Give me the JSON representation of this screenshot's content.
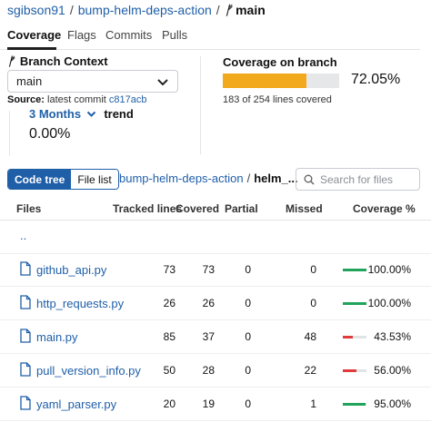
{
  "breadcrumb": {
    "owner": "sgibson91",
    "repo": "bump-helm-deps-action",
    "branch_icon": "branch-icon",
    "branch": "main",
    "separator": "/"
  },
  "tabs": [
    {
      "label": "Coverage",
      "active": true
    },
    {
      "label": "Flags",
      "active": false
    },
    {
      "label": "Commits",
      "active": false
    },
    {
      "label": "Pulls",
      "active": false
    }
  ],
  "branch_context": {
    "title": "Branch Context",
    "selected": "main",
    "source_label": "Source:",
    "source_text": "latest commit",
    "commit": "c817acb"
  },
  "coverage": {
    "title": "Coverage on branch",
    "percent_label": "72.05%",
    "fraction": 0.7205,
    "lines_text": "183 of 254 lines covered"
  },
  "trend": {
    "period": "3 Months",
    "label": "trend",
    "value": "0.00%"
  },
  "view_toggle": {
    "code_tree": "Code tree",
    "file_list": "File list"
  },
  "path": {
    "root": "bump-helm-deps-action",
    "current": "helm_..."
  },
  "search": {
    "placeholder": "Search for files",
    "value": ""
  },
  "table": {
    "headers": {
      "files": "Files",
      "tracked": "Tracked lines",
      "covered": "Covered",
      "partial": "Partial",
      "missed": "Missed",
      "coverage": "Coverage %"
    },
    "parent": "..",
    "rows": [
      {
        "name": "github_api.py",
        "tracked": "73",
        "covered": "73",
        "partial": "0",
        "missed": "0",
        "coverage": "100.00%",
        "fraction": 1.0,
        "color": "#21a35c"
      },
      {
        "name": "http_requests.py",
        "tracked": "26",
        "covered": "26",
        "partial": "0",
        "missed": "0",
        "coverage": "100.00%",
        "fraction": 1.0,
        "color": "#21a35c"
      },
      {
        "name": "main.py",
        "tracked": "85",
        "covered": "37",
        "partial": "0",
        "missed": "48",
        "coverage": "43.53%",
        "fraction": 0.4353,
        "color": "#e03b3b"
      },
      {
        "name": "pull_version_info.py",
        "tracked": "50",
        "covered": "28",
        "partial": "0",
        "missed": "22",
        "coverage": "56.00%",
        "fraction": 0.56,
        "color": "#e03b3b"
      },
      {
        "name": "yaml_parser.py",
        "tracked": "20",
        "covered": "19",
        "partial": "0",
        "missed": "1",
        "coverage": "95.00%",
        "fraction": 0.95,
        "color": "#21a35c"
      }
    ]
  },
  "colors": {
    "accent": "#1f5fa8",
    "coverage_fill": "#f3a91d",
    "good": "#21a35c",
    "bad": "#e03b3b"
  }
}
